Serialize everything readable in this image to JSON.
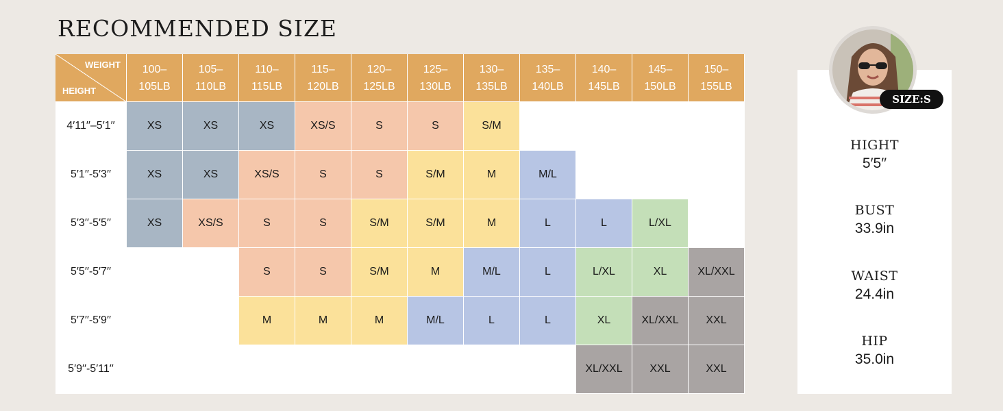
{
  "title": "RECOMMENDED SIZE",
  "corner": {
    "weight_label": "WEIGHT",
    "height_label": "HEIGHT"
  },
  "weights": [
    [
      "100–",
      "105LB"
    ],
    [
      "105–",
      "110LB"
    ],
    [
      "110–",
      "115LB"
    ],
    [
      "115–",
      "120LB"
    ],
    [
      "120–",
      "125LB"
    ],
    [
      "125–",
      "130LB"
    ],
    [
      "130–",
      "135LB"
    ],
    [
      "135–",
      "140LB"
    ],
    [
      "140–",
      "145LB"
    ],
    [
      "145–",
      "150LB"
    ],
    [
      "150–",
      "155LB"
    ]
  ],
  "rows": [
    {
      "height": "4′11′′–5′1′′",
      "cells": [
        [
          "XS",
          "gray"
        ],
        [
          "XS",
          "gray"
        ],
        [
          "XS",
          "gray"
        ],
        [
          "XS/S",
          "peach"
        ],
        [
          "S",
          "peach"
        ],
        [
          "S",
          "peach"
        ],
        [
          "S/M",
          "yellow"
        ],
        null,
        null,
        null,
        null
      ]
    },
    {
      "height": "5′1′′-5′3′′",
      "cells": [
        [
          "XS",
          "gray"
        ],
        [
          "XS",
          "gray"
        ],
        [
          "XS/S",
          "peach"
        ],
        [
          "S",
          "peach"
        ],
        [
          "S",
          "peach"
        ],
        [
          "S/M",
          "yellow"
        ],
        [
          "M",
          "yellow"
        ],
        [
          "M/L",
          "blue"
        ],
        null,
        null,
        null
      ]
    },
    {
      "height": "5′3′′-5′5′′",
      "cells": [
        [
          "XS",
          "gray"
        ],
        [
          "XS/S",
          "peach"
        ],
        [
          "S",
          "peach"
        ],
        [
          "S",
          "peach"
        ],
        [
          "S/M",
          "yellow"
        ],
        [
          "S/M",
          "yellow"
        ],
        [
          "M",
          "yellow"
        ],
        [
          "L",
          "blue"
        ],
        [
          "L",
          "blue"
        ],
        [
          "L/XL",
          "green"
        ],
        null
      ]
    },
    {
      "height": "5′5′′-5′7′′",
      "cells": [
        null,
        null,
        [
          "S",
          "peach"
        ],
        [
          "S",
          "peach"
        ],
        [
          "S/M",
          "yellow"
        ],
        [
          "M",
          "yellow"
        ],
        [
          "M/L",
          "blue"
        ],
        [
          "L",
          "blue"
        ],
        [
          "L/XL",
          "green"
        ],
        [
          "XL",
          "green"
        ],
        [
          "XL/XXL",
          "dgray"
        ]
      ]
    },
    {
      "height": "5′7′′-5′9′′",
      "cells": [
        null,
        null,
        [
          "M",
          "yellow"
        ],
        [
          "M",
          "yellow"
        ],
        [
          "M",
          "yellow"
        ],
        [
          "M/L",
          "blue"
        ],
        [
          "L",
          "blue"
        ],
        [
          "L",
          "blue"
        ],
        [
          "XL",
          "green"
        ],
        [
          "XL/XXL",
          "dgray"
        ],
        [
          "XXL",
          "dgray"
        ]
      ]
    },
    {
      "height": "5′9′′-5′11′′",
      "cells": [
        null,
        null,
        null,
        null,
        null,
        null,
        null,
        null,
        [
          "XL/XXL",
          "dgray"
        ],
        [
          "XXL",
          "dgray"
        ],
        [
          "XXL",
          "dgray"
        ]
      ]
    }
  ],
  "model": {
    "badge": "SIZE:S",
    "measurements": [
      {
        "label": "HIGHT",
        "value": "5′5′′"
      },
      {
        "label": "BUST",
        "value": "33.9in"
      },
      {
        "label": "WAIST",
        "value": "24.4in"
      },
      {
        "label": "HIP",
        "value": "35.0in"
      }
    ]
  },
  "colors": {
    "header": "#e0a85f",
    "gray": "#a8b6c4",
    "peach": "#f5c7ab",
    "yellow": "#fbe19a",
    "blue": "#b7c5e4",
    "green": "#c4dfb8",
    "dgray": "#a9a4a3",
    "background": "#ede9e4"
  }
}
